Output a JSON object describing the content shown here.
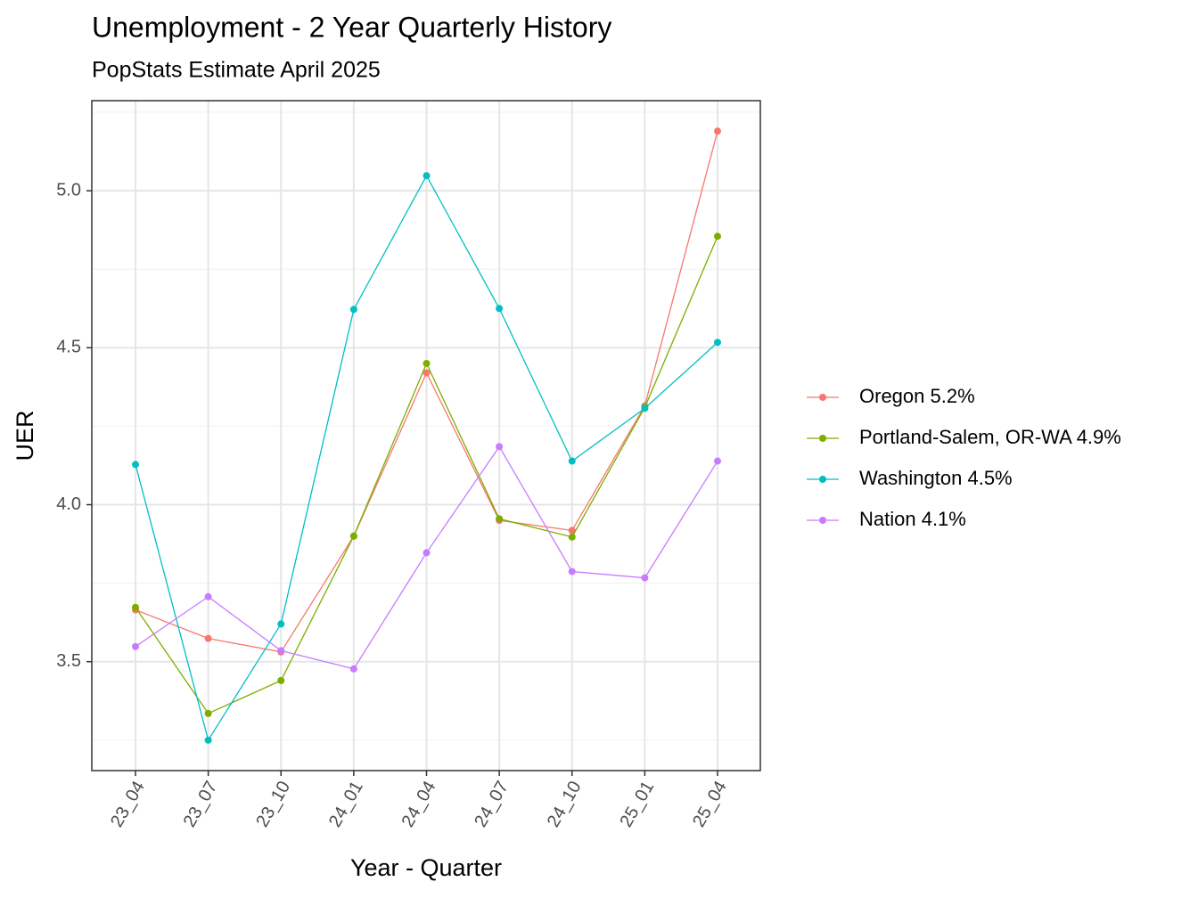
{
  "chart_data": {
    "type": "line",
    "title": "Unemployment - 2 Year Quarterly History",
    "subtitle": "PopStats Estimate April 2025",
    "x_label": "Year - Quarter",
    "y_label": "UER",
    "categories": [
      "23_04",
      "23_07",
      "23_10",
      "24_01",
      "24_04",
      "24_07",
      "24_10",
      "25_01",
      "25_04"
    ],
    "series": [
      {
        "name": "Oregon 5.2%",
        "color": "#F8766D",
        "values": [
          3.665,
          3.574,
          3.531,
          3.9,
          4.42,
          3.95,
          3.918,
          4.315,
          5.19
        ]
      },
      {
        "name": "Portland-Salem, OR-WA 4.9%",
        "color": "#7CAE00",
        "values": [
          3.673,
          3.335,
          3.44,
          3.9,
          4.45,
          3.955,
          3.897,
          4.31,
          4.855
        ]
      },
      {
        "name": "Washington 4.5%",
        "color": "#00BFC4",
        "values": [
          4.128,
          3.25,
          3.62,
          4.622,
          5.048,
          4.625,
          4.139,
          4.307,
          4.517
        ]
      },
      {
        "name": "Nation 4.1%",
        "color": "#C77CFF",
        "values": [
          3.548,
          3.707,
          3.535,
          3.477,
          3.847,
          4.185,
          3.787,
          3.767,
          4.139
        ]
      }
    ],
    "ylim": [
      3.153,
      5.287
    ],
    "yticks": [
      3.5,
      {
        "value": 4,
        "label": "4.0"
      },
      4.5,
      {
        "value": 5,
        "label": "5.0"
      }
    ],
    "grid": true,
    "legend": "right"
  }
}
